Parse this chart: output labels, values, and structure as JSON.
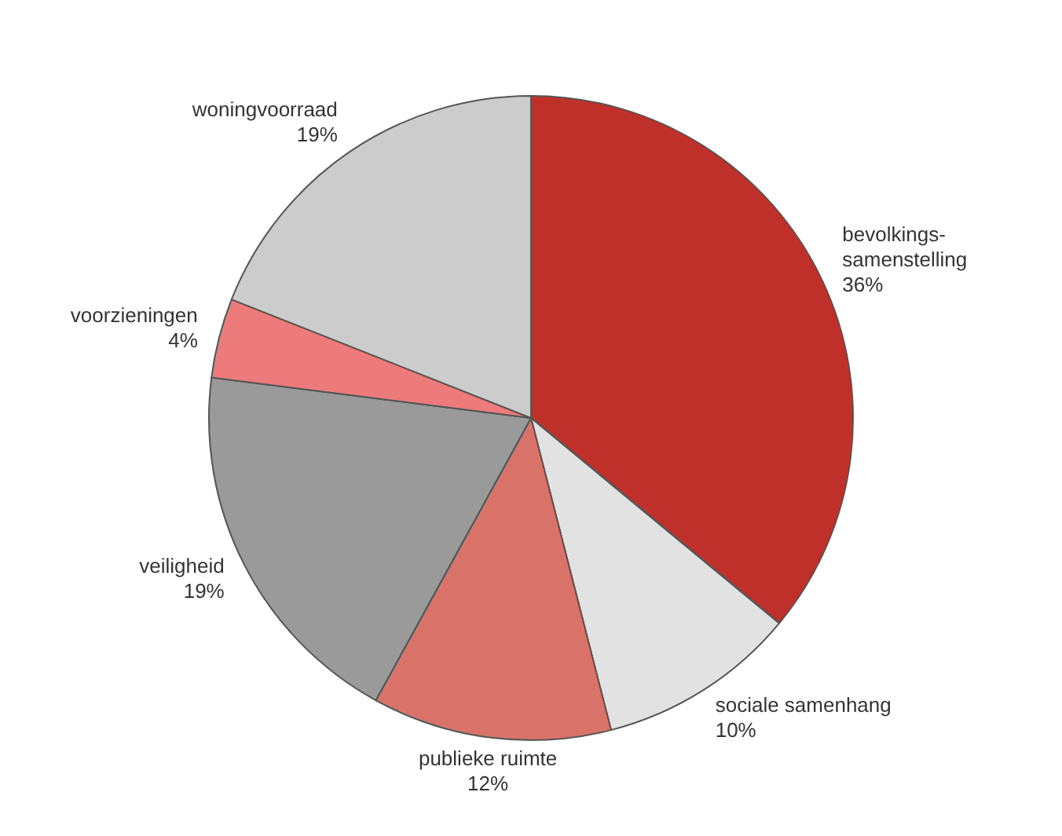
{
  "chart_data": {
    "type": "pie",
    "categories": [
      "bevolkings-samenstelling",
      "sociale samenhang",
      "publieke ruimte",
      "veiligheid",
      "voorzieningen",
      "woningvoorraad"
    ],
    "values": [
      36,
      10,
      12,
      19,
      4,
      19
    ],
    "value_labels": [
      "36%",
      "10%",
      "12%",
      "19%",
      "4%",
      "19%"
    ],
    "colors": [
      "#c0302a",
      "#e2e2e2",
      "#d9736a",
      "#9a9a9a",
      "#ee7b7b",
      "#cccccc"
    ],
    "legend": false
  }
}
